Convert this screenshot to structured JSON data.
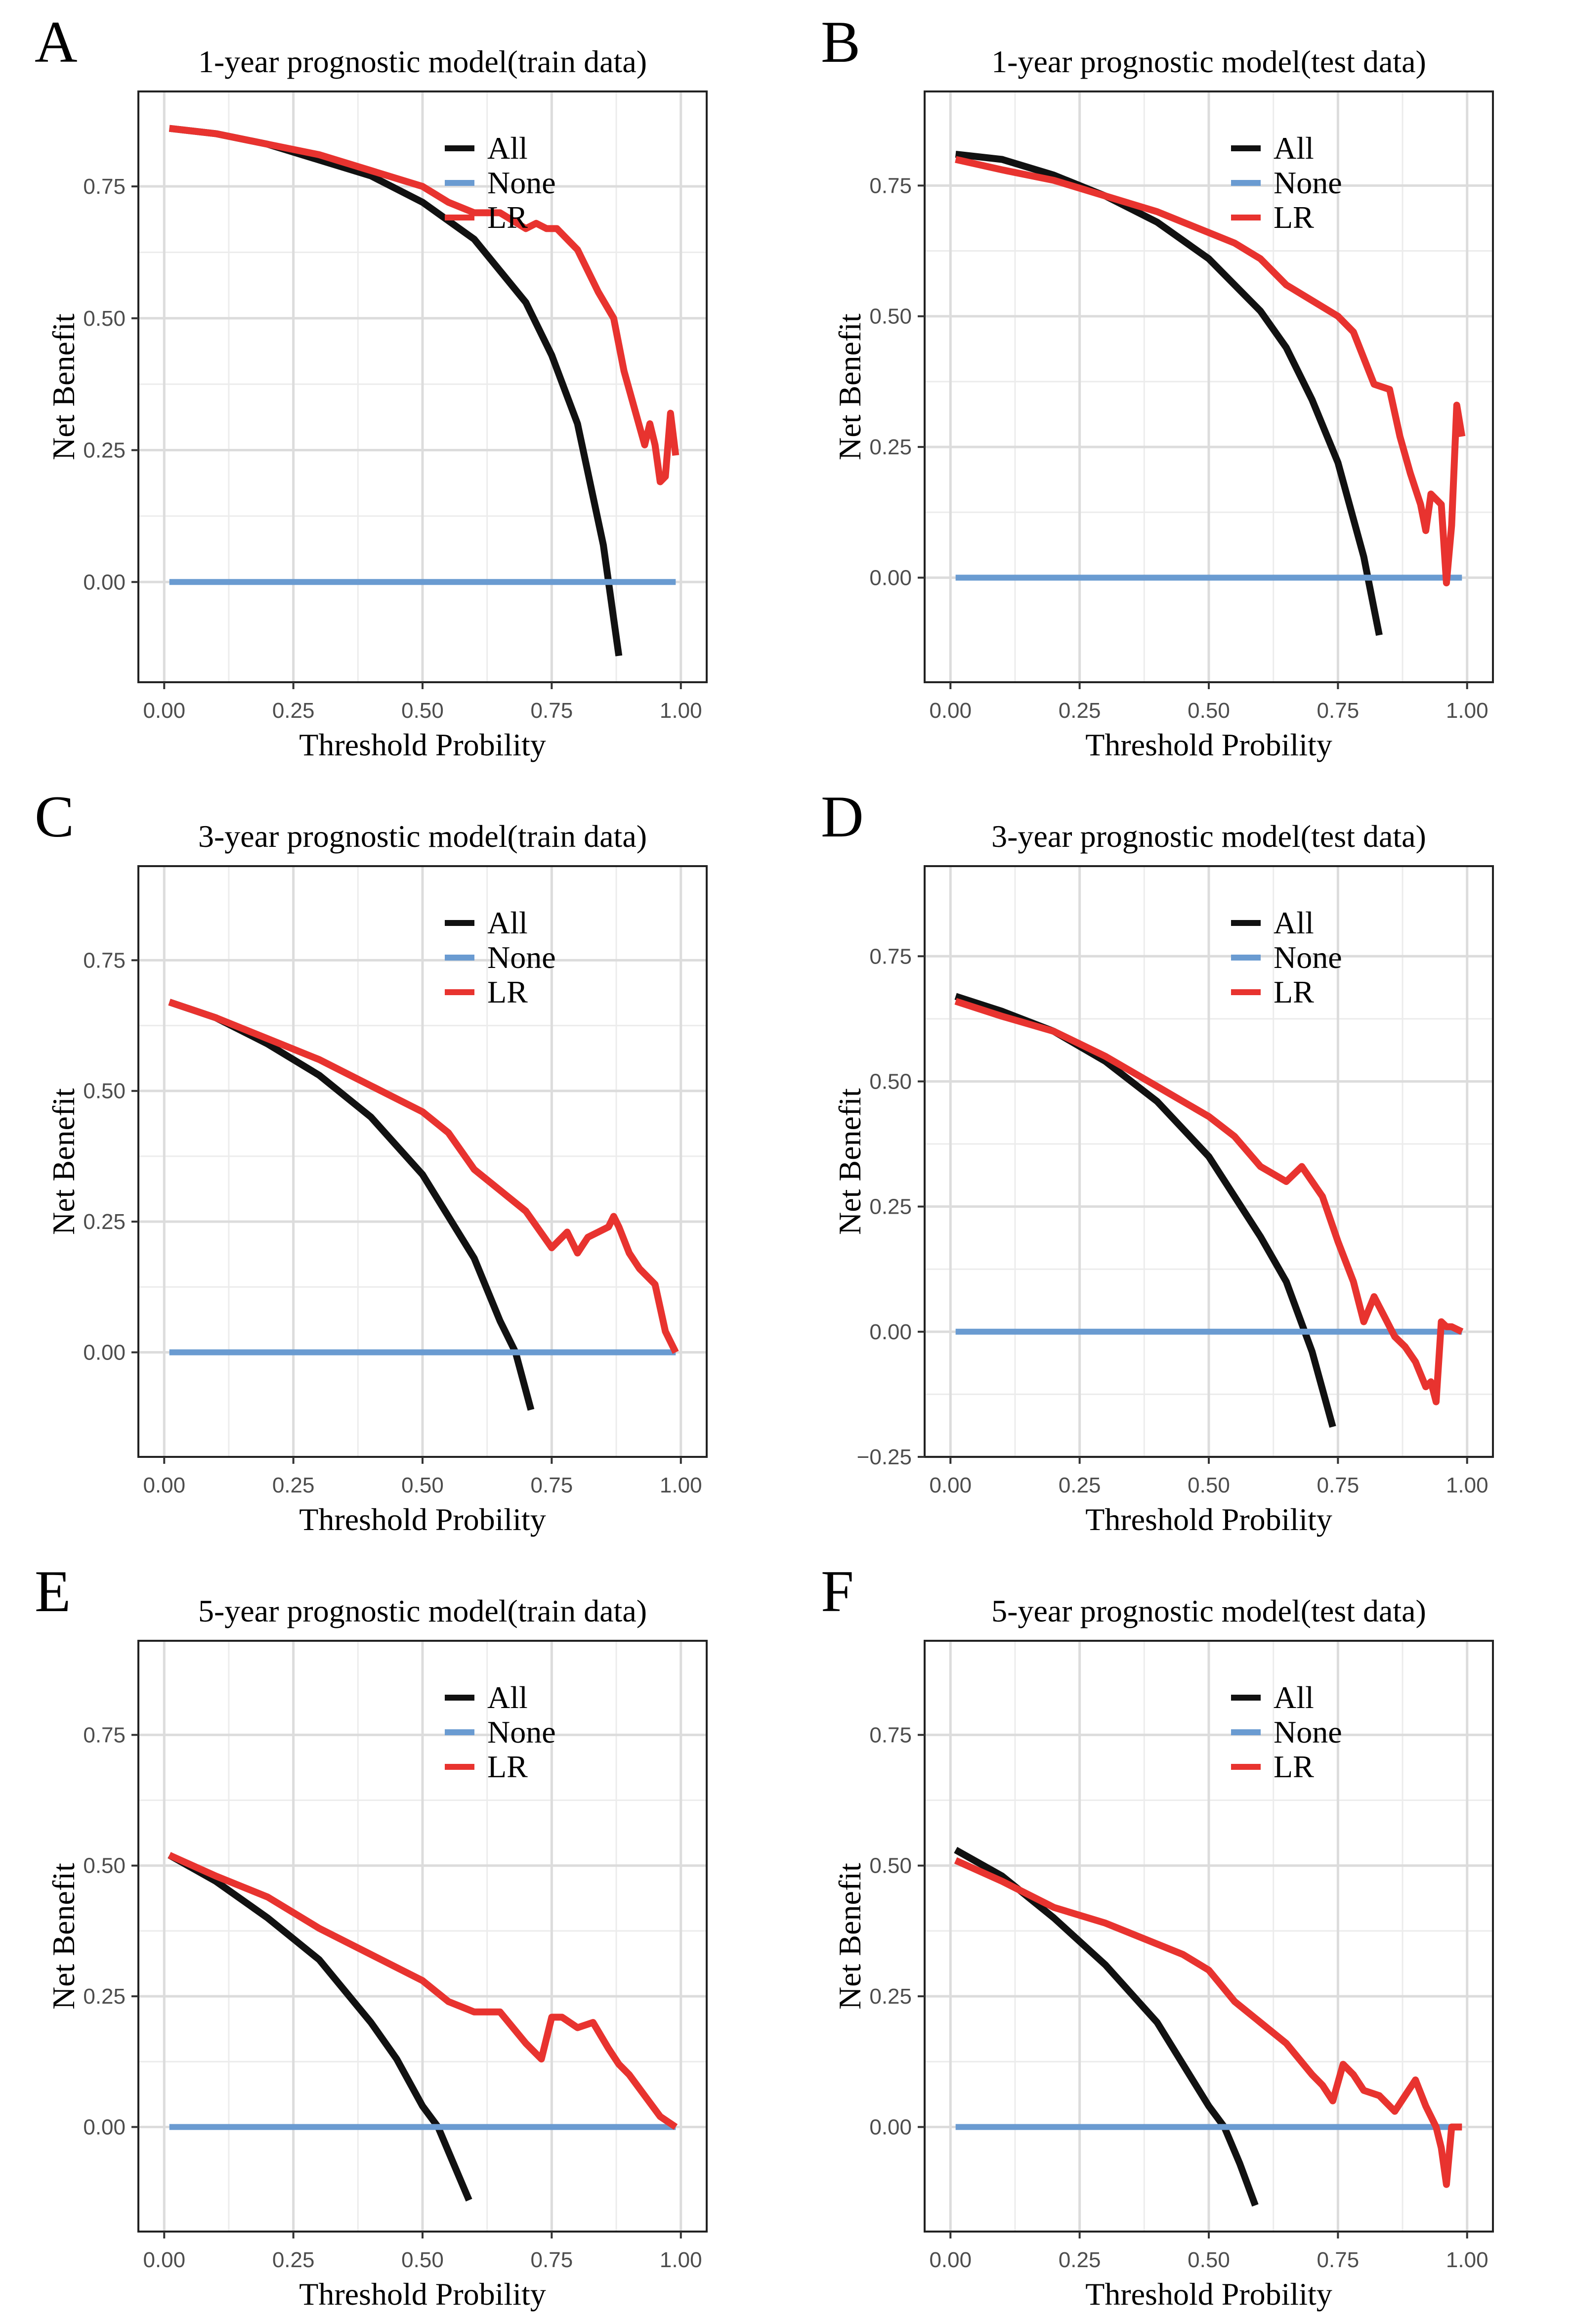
{
  "chart_data": [
    {
      "panel_label": "A",
      "type": "line",
      "title": "1-year prognostic model(train data)",
      "xlabel": "Threshold Probility",
      "ylabel": "Net Benefit",
      "xlim": [
        -0.05,
        1.05
      ],
      "ylim": [
        -0.19,
        0.93
      ],
      "xticks": [
        0,
        0.25,
        0.5,
        0.75,
        1
      ],
      "xtick_labels": [
        "0.00",
        "0.25",
        "0.50",
        "0.75",
        "1.00"
      ],
      "yticks": [
        0,
        0.25,
        0.5,
        0.75
      ],
      "ytick_labels": [
        "0.00",
        "0.25",
        "0.50",
        "0.75"
      ],
      "legend": [
        "All",
        "None",
        "LR"
      ],
      "series": [
        {
          "name": "All",
          "color": "#111111",
          "x": [
            0.01,
            0.1,
            0.2,
            0.3,
            0.4,
            0.5,
            0.6,
            0.7,
            0.75,
            0.8,
            0.85,
            0.88
          ],
          "y": [
            0.86,
            0.85,
            0.83,
            0.8,
            0.77,
            0.72,
            0.65,
            0.53,
            0.43,
            0.3,
            0.07,
            -0.14
          ]
        },
        {
          "name": "None",
          "color": "#6a9bd1",
          "x": [
            0.01,
            0.99
          ],
          "y": [
            0,
            0
          ]
        },
        {
          "name": "LR",
          "color": "#e8332f",
          "x": [
            0.01,
            0.1,
            0.2,
            0.3,
            0.4,
            0.5,
            0.55,
            0.6,
            0.65,
            0.7,
            0.72,
            0.74,
            0.76,
            0.8,
            0.84,
            0.87,
            0.89,
            0.91,
            0.93,
            0.94,
            0.95,
            0.96,
            0.97,
            0.98,
            0.99
          ],
          "y": [
            0.86,
            0.85,
            0.83,
            0.81,
            0.78,
            0.75,
            0.72,
            0.7,
            0.7,
            0.67,
            0.68,
            0.67,
            0.67,
            0.63,
            0.55,
            0.5,
            0.4,
            0.33,
            0.26,
            0.3,
            0.26,
            0.19,
            0.2,
            0.32,
            0.24
          ]
        }
      ]
    },
    {
      "panel_label": "B",
      "type": "line",
      "title": "1-year prognostic model(test data)",
      "xlabel": "Threshold Probility",
      "ylabel": "Net Benefit",
      "xlim": [
        -0.05,
        1.05
      ],
      "ylim": [
        -0.2,
        0.93
      ],
      "xticks": [
        0,
        0.25,
        0.5,
        0.75,
        1
      ],
      "xtick_labels": [
        "0.00",
        "0.25",
        "0.50",
        "0.75",
        "1.00"
      ],
      "yticks": [
        0,
        0.25,
        0.5,
        0.75
      ],
      "ytick_labels": [
        "0.00",
        "0.25",
        "0.50",
        "0.75"
      ],
      "legend": [
        "All",
        "None",
        "LR"
      ],
      "series": [
        {
          "name": "All",
          "color": "#111111",
          "x": [
            0.01,
            0.1,
            0.2,
            0.3,
            0.4,
            0.5,
            0.6,
            0.65,
            0.7,
            0.75,
            0.8,
            0.83
          ],
          "y": [
            0.81,
            0.8,
            0.77,
            0.73,
            0.68,
            0.61,
            0.51,
            0.44,
            0.34,
            0.22,
            0.04,
            -0.11
          ]
        },
        {
          "name": "None",
          "color": "#6a9bd1",
          "x": [
            0.01,
            0.99
          ],
          "y": [
            0,
            0
          ]
        },
        {
          "name": "LR",
          "color": "#e8332f",
          "x": [
            0.01,
            0.1,
            0.2,
            0.3,
            0.4,
            0.45,
            0.5,
            0.55,
            0.6,
            0.65,
            0.7,
            0.75,
            0.78,
            0.82,
            0.85,
            0.87,
            0.89,
            0.91,
            0.92,
            0.93,
            0.95,
            0.96,
            0.97,
            0.98,
            0.99
          ],
          "y": [
            0.8,
            0.78,
            0.76,
            0.73,
            0.7,
            0.68,
            0.66,
            0.64,
            0.61,
            0.56,
            0.53,
            0.5,
            0.47,
            0.37,
            0.36,
            0.27,
            0.2,
            0.14,
            0.09,
            0.16,
            0.14,
            -0.01,
            0.1,
            0.33,
            0.27
          ]
        }
      ]
    },
    {
      "panel_label": "C",
      "type": "line",
      "title": "3-year prognostic model(train data)",
      "xlabel": "Threshold Probility",
      "ylabel": "Net Benefit",
      "xlim": [
        -0.05,
        1.05
      ],
      "ylim": [
        -0.2,
        0.93
      ],
      "xticks": [
        0,
        0.25,
        0.5,
        0.75,
        1
      ],
      "xtick_labels": [
        "0.00",
        "0.25",
        "0.50",
        "0.75",
        "1.00"
      ],
      "yticks": [
        0,
        0.25,
        0.5,
        0.75
      ],
      "ytick_labels": [
        "0.00",
        "0.25",
        "0.50",
        "0.75"
      ],
      "legend": [
        "All",
        "None",
        "LR"
      ],
      "series": [
        {
          "name": "All",
          "color": "#111111",
          "x": [
            0.01,
            0.1,
            0.2,
            0.3,
            0.4,
            0.5,
            0.6,
            0.65,
            0.68,
            0.71
          ],
          "y": [
            0.67,
            0.64,
            0.59,
            0.53,
            0.45,
            0.34,
            0.18,
            0.06,
            0.0,
            -0.11
          ]
        },
        {
          "name": "None",
          "color": "#6a9bd1",
          "x": [
            0.01,
            0.99
          ],
          "y": [
            0,
            0
          ]
        },
        {
          "name": "LR",
          "color": "#e8332f",
          "x": [
            0.01,
            0.1,
            0.2,
            0.3,
            0.4,
            0.5,
            0.55,
            0.6,
            0.65,
            0.7,
            0.75,
            0.78,
            0.8,
            0.82,
            0.84,
            0.86,
            0.87,
            0.88,
            0.9,
            0.92,
            0.95,
            0.97,
            0.99
          ],
          "y": [
            0.67,
            0.64,
            0.6,
            0.56,
            0.51,
            0.46,
            0.42,
            0.35,
            0.31,
            0.27,
            0.2,
            0.23,
            0.19,
            0.22,
            0.23,
            0.24,
            0.26,
            0.24,
            0.19,
            0.16,
            0.13,
            0.04,
            0.0
          ]
        }
      ]
    },
    {
      "panel_label": "D",
      "type": "line",
      "title": "3-year prognostic model(test data)",
      "xlabel": "Threshold Probility",
      "ylabel": "Net Benefit",
      "xlim": [
        -0.05,
        1.05
      ],
      "ylim": [
        -0.25,
        0.93
      ],
      "xticks": [
        0,
        0.25,
        0.5,
        0.75,
        1
      ],
      "xtick_labels": [
        "0.00",
        "0.25",
        "0.50",
        "0.75",
        "1.00"
      ],
      "yticks": [
        -0.25,
        0,
        0.25,
        0.5,
        0.75
      ],
      "ytick_labels": [
        "−0.25",
        "0.00",
        "0.25",
        "0.50",
        "0.75"
      ],
      "legend": [
        "All",
        "None",
        "LR"
      ],
      "series": [
        {
          "name": "All",
          "color": "#111111",
          "x": [
            0.01,
            0.1,
            0.2,
            0.3,
            0.4,
            0.5,
            0.6,
            0.65,
            0.7,
            0.74
          ],
          "y": [
            0.67,
            0.64,
            0.6,
            0.54,
            0.46,
            0.35,
            0.19,
            0.1,
            -0.04,
            -0.19
          ]
        },
        {
          "name": "None",
          "color": "#6a9bd1",
          "x": [
            0.01,
            0.99
          ],
          "y": [
            0,
            0
          ]
        },
        {
          "name": "LR",
          "color": "#e8332f",
          "x": [
            0.01,
            0.1,
            0.2,
            0.3,
            0.4,
            0.45,
            0.5,
            0.55,
            0.6,
            0.65,
            0.68,
            0.7,
            0.72,
            0.75,
            0.78,
            0.8,
            0.82,
            0.84,
            0.86,
            0.88,
            0.9,
            0.92,
            0.93,
            0.94,
            0.95,
            0.96,
            0.97,
            0.99
          ],
          "y": [
            0.66,
            0.63,
            0.6,
            0.55,
            0.49,
            0.46,
            0.43,
            0.39,
            0.33,
            0.3,
            0.33,
            0.3,
            0.27,
            0.18,
            0.1,
            0.02,
            0.07,
            0.03,
            -0.01,
            -0.03,
            -0.06,
            -0.11,
            -0.1,
            -0.14,
            0.02,
            0.01,
            0.01,
            0.0
          ]
        }
      ]
    },
    {
      "panel_label": "E",
      "type": "line",
      "title": "5-year prognostic model(train data)",
      "xlabel": "Threshold Probility",
      "ylabel": "Net Benefit",
      "xlim": [
        -0.05,
        1.05
      ],
      "ylim": [
        -0.2,
        0.93
      ],
      "xticks": [
        0,
        0.25,
        0.5,
        0.75,
        1
      ],
      "xtick_labels": [
        "0.00",
        "0.25",
        "0.50",
        "0.75",
        "1.00"
      ],
      "yticks": [
        0,
        0.25,
        0.5,
        0.75
      ],
      "ytick_labels": [
        "0.00",
        "0.25",
        "0.50",
        "0.75"
      ],
      "legend": [
        "All",
        "None",
        "LR"
      ],
      "series": [
        {
          "name": "All",
          "color": "#111111",
          "x": [
            0.01,
            0.1,
            0.2,
            0.3,
            0.4,
            0.45,
            0.5,
            0.53,
            0.56,
            0.59
          ],
          "y": [
            0.52,
            0.47,
            0.4,
            0.32,
            0.2,
            0.13,
            0.04,
            0.0,
            -0.07,
            -0.14
          ]
        },
        {
          "name": "None",
          "color": "#6a9bd1",
          "x": [
            0.01,
            0.99
          ],
          "y": [
            0,
            0
          ]
        },
        {
          "name": "LR",
          "color": "#e8332f",
          "x": [
            0.01,
            0.1,
            0.2,
            0.3,
            0.4,
            0.5,
            0.55,
            0.6,
            0.65,
            0.7,
            0.73,
            0.75,
            0.77,
            0.8,
            0.83,
            0.86,
            0.88,
            0.9,
            0.93,
            0.96,
            0.99
          ],
          "y": [
            0.52,
            0.48,
            0.44,
            0.38,
            0.33,
            0.28,
            0.24,
            0.22,
            0.22,
            0.16,
            0.13,
            0.21,
            0.21,
            0.19,
            0.2,
            0.15,
            0.12,
            0.1,
            0.06,
            0.02,
            0.0
          ]
        }
      ]
    },
    {
      "panel_label": "F",
      "type": "line",
      "title": "5-year prognostic model(test data)",
      "xlabel": "Threshold Probility",
      "ylabel": "Net Benefit",
      "xlim": [
        -0.05,
        1.05
      ],
      "ylim": [
        -0.2,
        0.93
      ],
      "xticks": [
        0,
        0.25,
        0.5,
        0.75,
        1
      ],
      "xtick_labels": [
        "0.00",
        "0.25",
        "0.50",
        "0.75",
        "1.00"
      ],
      "yticks": [
        0,
        0.25,
        0.5,
        0.75
      ],
      "ytick_labels": [
        "0.00",
        "0.25",
        "0.50",
        "0.75"
      ],
      "legend": [
        "All",
        "None",
        "LR"
      ],
      "series": [
        {
          "name": "All",
          "color": "#111111",
          "x": [
            0.01,
            0.1,
            0.2,
            0.3,
            0.4,
            0.45,
            0.5,
            0.53,
            0.56,
            0.59
          ],
          "y": [
            0.53,
            0.48,
            0.4,
            0.31,
            0.2,
            0.12,
            0.04,
            0.0,
            -0.07,
            -0.15
          ]
        },
        {
          "name": "None",
          "color": "#6a9bd1",
          "x": [
            0.01,
            0.99
          ],
          "y": [
            0,
            0
          ]
        },
        {
          "name": "LR",
          "color": "#e8332f",
          "x": [
            0.01,
            0.1,
            0.2,
            0.3,
            0.35,
            0.4,
            0.45,
            0.5,
            0.55,
            0.6,
            0.65,
            0.7,
            0.72,
            0.74,
            0.76,
            0.78,
            0.8,
            0.83,
            0.86,
            0.88,
            0.9,
            0.92,
            0.94,
            0.95,
            0.96,
            0.97,
            0.99
          ],
          "y": [
            0.51,
            0.47,
            0.42,
            0.39,
            0.37,
            0.35,
            0.33,
            0.3,
            0.24,
            0.2,
            0.16,
            0.1,
            0.08,
            0.05,
            0.12,
            0.1,
            0.07,
            0.06,
            0.03,
            0.06,
            0.09,
            0.04,
            0.0,
            -0.04,
            -0.11,
            0.0,
            0.0
          ]
        }
      ]
    }
  ]
}
